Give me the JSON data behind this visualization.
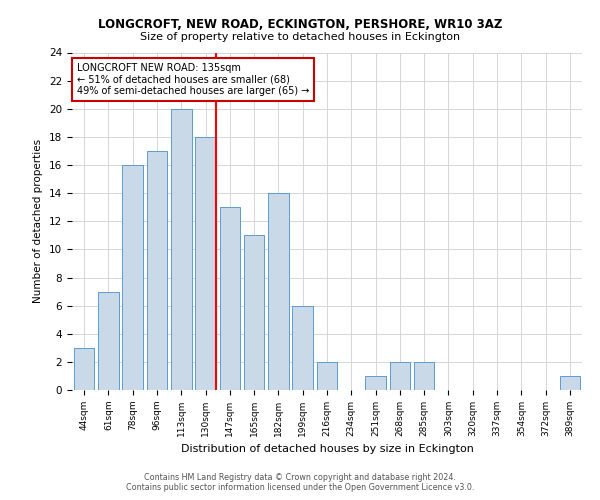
{
  "title": "LONGCROFT, NEW ROAD, ECKINGTON, PERSHORE, WR10 3AZ",
  "subtitle": "Size of property relative to detached houses in Eckington",
  "xlabel": "Distribution of detached houses by size in Eckington",
  "ylabel": "Number of detached properties",
  "categories": [
    "44sqm",
    "61sqm",
    "78sqm",
    "96sqm",
    "113sqm",
    "130sqm",
    "147sqm",
    "165sqm",
    "182sqm",
    "199sqm",
    "216sqm",
    "234sqm",
    "251sqm",
    "268sqm",
    "285sqm",
    "303sqm",
    "320sqm",
    "337sqm",
    "354sqm",
    "372sqm",
    "389sqm"
  ],
  "values": [
    3,
    7,
    16,
    17,
    20,
    18,
    13,
    11,
    14,
    6,
    2,
    0,
    1,
    2,
    2,
    0,
    0,
    0,
    0,
    0,
    1
  ],
  "bar_color": "#c9d9e8",
  "bar_edge_color": "#5b9bd5",
  "red_line_index": 5,
  "annotation_line1": "LONGCROFT NEW ROAD: 135sqm",
  "annotation_line2": "← 51% of detached houses are smaller (68)",
  "annotation_line3": "49% of semi-detached houses are larger (65) →",
  "annotation_box_color": "#ffffff",
  "annotation_box_edge": "#cc0000",
  "ylim": [
    0,
    24
  ],
  "yticks": [
    0,
    2,
    4,
    6,
    8,
    10,
    12,
    14,
    16,
    18,
    20,
    22,
    24
  ],
  "grid_color": "#d0d0d0",
  "background_color": "#ffffff",
  "footer1": "Contains HM Land Registry data © Crown copyright and database right 2024.",
  "footer2": "Contains public sector information licensed under the Open Government Licence v3.0."
}
